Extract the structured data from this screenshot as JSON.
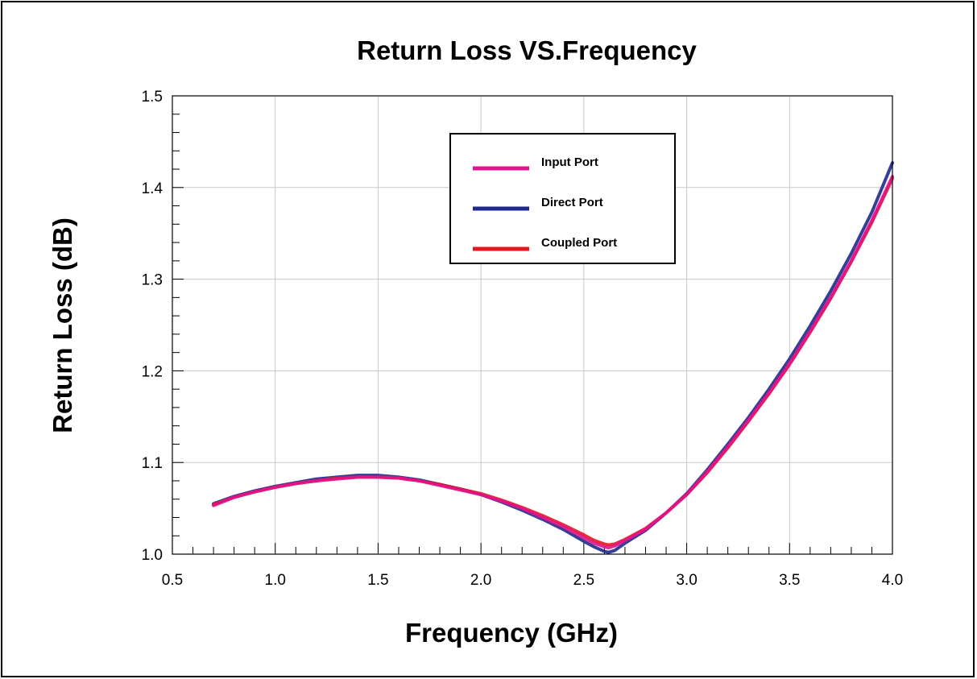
{
  "chart_data": {
    "type": "line",
    "title": "Return Loss VS.Frequency",
    "xlabel": "Frequency (GHz)",
    "ylabel": "Return Loss (dB)",
    "xlim": [
      0.5,
      4.0
    ],
    "ylim": [
      1.0,
      1.5
    ],
    "x_ticks": [
      "0.5",
      "1.0",
      "1.5",
      "2.0",
      "2.5",
      "3.0",
      "3.5",
      "4.0"
    ],
    "y_ticks": [
      "1.0",
      "1.1",
      "1.2",
      "1.3",
      "1.4",
      "1.5"
    ],
    "grid": true,
    "legend_position": "top-center",
    "series": [
      {
        "name": "Input Port",
        "color": "#e0148c",
        "x": [
          0.7,
          0.8,
          0.9,
          1.0,
          1.1,
          1.2,
          1.3,
          1.4,
          1.5,
          1.6,
          1.7,
          1.8,
          1.9,
          2.0,
          2.1,
          2.2,
          2.3,
          2.4,
          2.5,
          2.55,
          2.6,
          2.62,
          2.65,
          2.7,
          2.8,
          2.9,
          3.0,
          3.1,
          3.2,
          3.3,
          3.4,
          3.5,
          3.6,
          3.7,
          3.8,
          3.9,
          4.0
        ],
        "values": [
          1.053,
          1.062,
          1.068,
          1.073,
          1.077,
          1.08,
          1.082,
          1.084,
          1.084,
          1.083,
          1.08,
          1.075,
          1.07,
          1.065,
          1.058,
          1.05,
          1.04,
          1.03,
          1.018,
          1.012,
          1.008,
          1.007,
          1.009,
          1.015,
          1.027,
          1.045,
          1.065,
          1.09,
          1.117,
          1.146,
          1.176,
          1.208,
          1.243,
          1.28,
          1.32,
          1.364,
          1.412
        ]
      },
      {
        "name": "Direct Port",
        "color": "#1f2a8c",
        "x": [
          0.7,
          0.8,
          0.9,
          1.0,
          1.1,
          1.2,
          1.3,
          1.4,
          1.5,
          1.6,
          1.7,
          1.8,
          1.9,
          2.0,
          2.1,
          2.2,
          2.3,
          2.4,
          2.5,
          2.55,
          2.6,
          2.62,
          2.65,
          2.7,
          2.8,
          2.9,
          3.0,
          3.1,
          3.2,
          3.3,
          3.4,
          3.5,
          3.6,
          3.7,
          3.8,
          3.9,
          4.0
        ],
        "values": [
          1.055,
          1.063,
          1.069,
          1.074,
          1.078,
          1.082,
          1.084,
          1.086,
          1.086,
          1.084,
          1.081,
          1.076,
          1.071,
          1.065,
          1.057,
          1.048,
          1.038,
          1.027,
          1.014,
          1.008,
          1.003,
          1.002,
          1.004,
          1.012,
          1.026,
          1.045,
          1.066,
          1.092,
          1.12,
          1.149,
          1.18,
          1.213,
          1.249,
          1.287,
          1.328,
          1.373,
          1.427
        ]
      },
      {
        "name": "Coupled Port",
        "color": "#e8141e",
        "x": [
          0.7,
          0.8,
          0.9,
          1.0,
          1.1,
          1.2,
          1.3,
          1.4,
          1.5,
          1.6,
          1.7,
          1.8,
          1.9,
          2.0,
          2.1,
          2.2,
          2.3,
          2.4,
          2.5,
          2.55,
          2.6,
          2.62,
          2.65,
          2.7,
          2.8,
          2.9,
          3.0,
          3.1,
          3.2,
          3.3,
          3.4,
          3.5,
          3.6,
          3.7,
          3.8,
          3.9,
          4.0
        ],
        "values": [
          1.054,
          1.062,
          1.068,
          1.073,
          1.077,
          1.08,
          1.083,
          1.084,
          1.084,
          1.083,
          1.08,
          1.076,
          1.071,
          1.066,
          1.059,
          1.051,
          1.042,
          1.032,
          1.021,
          1.015,
          1.011,
          1.01,
          1.011,
          1.016,
          1.028,
          1.045,
          1.065,
          1.089,
          1.116,
          1.145,
          1.175,
          1.207,
          1.242,
          1.279,
          1.319,
          1.362,
          1.41
        ]
      }
    ]
  }
}
